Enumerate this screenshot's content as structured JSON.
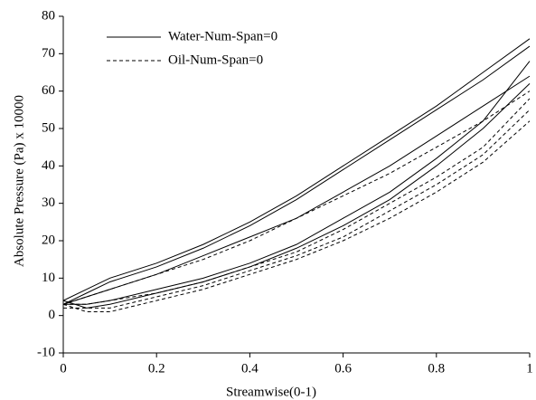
{
  "chart_data": {
    "type": "line",
    "x_label": "Streamwise(0-1)",
    "y_label": "Absolute Pressure (Pa) x 10000",
    "x": [
      0,
      0.05,
      0.1,
      0.2,
      0.3,
      0.4,
      0.5,
      0.6,
      0.7,
      0.8,
      0.9,
      1
    ],
    "xlim": [
      0,
      1
    ],
    "xticks": [
      0,
      0.2,
      0.4,
      0.6,
      0.8,
      1
    ],
    "ylim": [
      -10,
      80
    ],
    "yticks": [
      -10,
      0,
      10,
      20,
      30,
      40,
      50,
      60,
      70,
      80
    ],
    "legend": "upper left",
    "series": [
      {
        "name": "Water-Num-Span=0",
        "color": "#000000",
        "dash": "solid",
        "curves": [
          [
            3,
            6,
            9,
            13,
            18,
            24,
            31,
            39,
            47,
            55,
            63,
            72
          ],
          [
            4,
            7,
            10,
            14,
            19,
            25,
            32,
            40,
            48,
            56,
            65,
            74
          ],
          [
            3,
            5,
            7,
            11,
            16,
            21,
            26,
            33,
            40,
            48,
            56,
            64
          ],
          [
            3,
            3,
            4,
            7,
            10,
            14,
            19,
            26,
            33,
            42,
            52,
            68
          ],
          [
            4,
            2,
            3,
            6,
            9,
            13,
            18,
            24,
            31,
            40,
            50,
            62
          ]
        ]
      },
      {
        "name": "Oil-Num-Span=0",
        "color": "#000000",
        "dash": "dashed",
        "curves": [
          [
            3,
            5,
            7,
            11,
            15,
            20,
            26,
            32,
            38,
            45,
            52,
            60
          ],
          [
            2,
            2,
            2,
            5,
            8,
            12,
            16,
            21,
            28,
            35,
            43,
            55
          ],
          [
            3,
            1,
            1,
            4,
            7,
            11,
            15,
            20,
            26,
            33,
            41,
            52
          ],
          [
            3,
            3,
            4,
            6,
            9,
            13,
            17,
            23,
            30,
            37,
            45,
            58
          ]
        ]
      }
    ]
  }
}
